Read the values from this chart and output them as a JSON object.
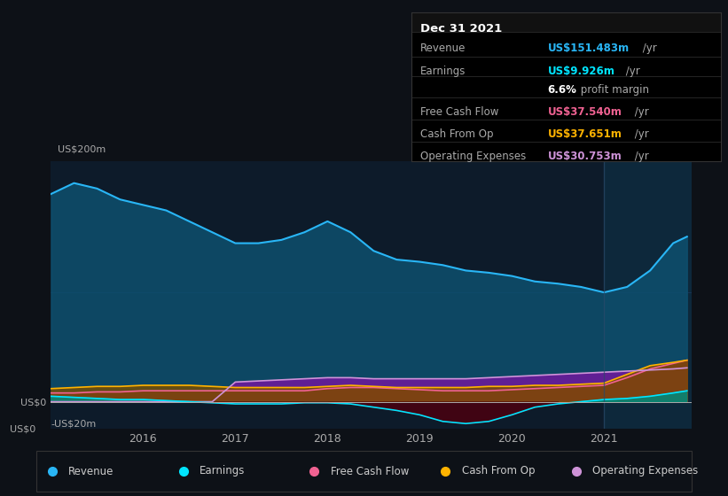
{
  "bg_color": "#0d1117",
  "plot_bg_color": "#0d1b2a",
  "years_x": [
    2015.0,
    2015.25,
    2015.5,
    2015.75,
    2016.0,
    2016.25,
    2016.5,
    2016.75,
    2017.0,
    2017.25,
    2017.5,
    2017.75,
    2018.0,
    2018.25,
    2018.5,
    2018.75,
    2019.0,
    2019.25,
    2019.5,
    2019.75,
    2020.0,
    2020.25,
    2020.5,
    2020.75,
    2021.0,
    2021.25,
    2021.5,
    2021.75,
    2021.9
  ],
  "revenue": [
    190,
    200,
    195,
    185,
    180,
    175,
    165,
    155,
    145,
    145,
    148,
    155,
    165,
    155,
    138,
    130,
    128,
    125,
    120,
    118,
    115,
    110,
    108,
    105,
    100,
    105,
    120,
    145,
    151
  ],
  "earnings": [
    5,
    4,
    3,
    2,
    2,
    1,
    0,
    -1,
    -2,
    -2,
    -2,
    -1,
    -1,
    -2,
    -5,
    -8,
    -12,
    -18,
    -20,
    -18,
    -12,
    -5,
    -2,
    0,
    2,
    3,
    5,
    8,
    10
  ],
  "free_cash_flow": [
    8,
    8,
    9,
    9,
    10,
    10,
    10,
    10,
    10,
    10,
    10,
    10,
    12,
    13,
    13,
    12,
    11,
    10,
    10,
    10,
    11,
    12,
    13,
    14,
    15,
    22,
    30,
    35,
    38
  ],
  "cash_from_op": [
    12,
    13,
    14,
    14,
    15,
    15,
    15,
    14,
    13,
    13,
    13,
    13,
    14,
    15,
    14,
    13,
    13,
    13,
    13,
    14,
    14,
    15,
    15,
    16,
    17,
    25,
    33,
    36,
    38
  ],
  "operating_expenses": [
    0,
    0,
    0,
    0,
    0,
    0,
    0,
    0,
    18,
    19,
    20,
    21,
    22,
    22,
    21,
    21,
    21,
    21,
    21,
    22,
    23,
    24,
    25,
    26,
    27,
    28,
    29,
    30,
    31
  ],
  "revenue_color": "#29b6f6",
  "revenue_fill": "#0d4f6e",
  "earnings_color": "#00e5ff",
  "earnings_fill_pos": "#00897b",
  "earnings_fill_neg": "#4a0010",
  "free_cash_flow_color": "#f06292",
  "free_cash_flow_fill": "#880e4f",
  "cash_from_op_color": "#ffb300",
  "cash_from_op_fill": "#7b4f00",
  "operating_expenses_color": "#ce93d8",
  "operating_expenses_fill": "#6a1b9a",
  "xmin": 2015.0,
  "xmax": 2021.95,
  "ymin": -25,
  "ymax": 220,
  "xtick_years": [
    2016,
    2017,
    2018,
    2019,
    2020,
    2021
  ],
  "vline_x": 2021.0,
  "legend_items": [
    {
      "label": "Revenue",
      "color": "#29b6f6"
    },
    {
      "label": "Earnings",
      "color": "#00e5ff"
    },
    {
      "label": "Free Cash Flow",
      "color": "#f06292"
    },
    {
      "label": "Cash From Op",
      "color": "#ffb300"
    },
    {
      "label": "Operating Expenses",
      "color": "#ce93d8"
    }
  ],
  "info_box": {
    "date": "Dec 31 2021",
    "rows": [
      {
        "label": "Revenue",
        "value": "US$151.483m",
        "value_color": "#29b6f6"
      },
      {
        "label": "Earnings",
        "value": "US$9.926m",
        "value_color": "#00e5ff"
      },
      {
        "label": "",
        "value": "6.6% profit margin",
        "value_color": "#cccccc"
      },
      {
        "label": "Free Cash Flow",
        "value": "US$37.540m",
        "value_color": "#f06292"
      },
      {
        "label": "Cash From Op",
        "value": "US$37.651m",
        "value_color": "#ffb300"
      },
      {
        "label": "Operating Expenses",
        "value": "US$30.753m",
        "value_color": "#ce93d8"
      }
    ]
  }
}
